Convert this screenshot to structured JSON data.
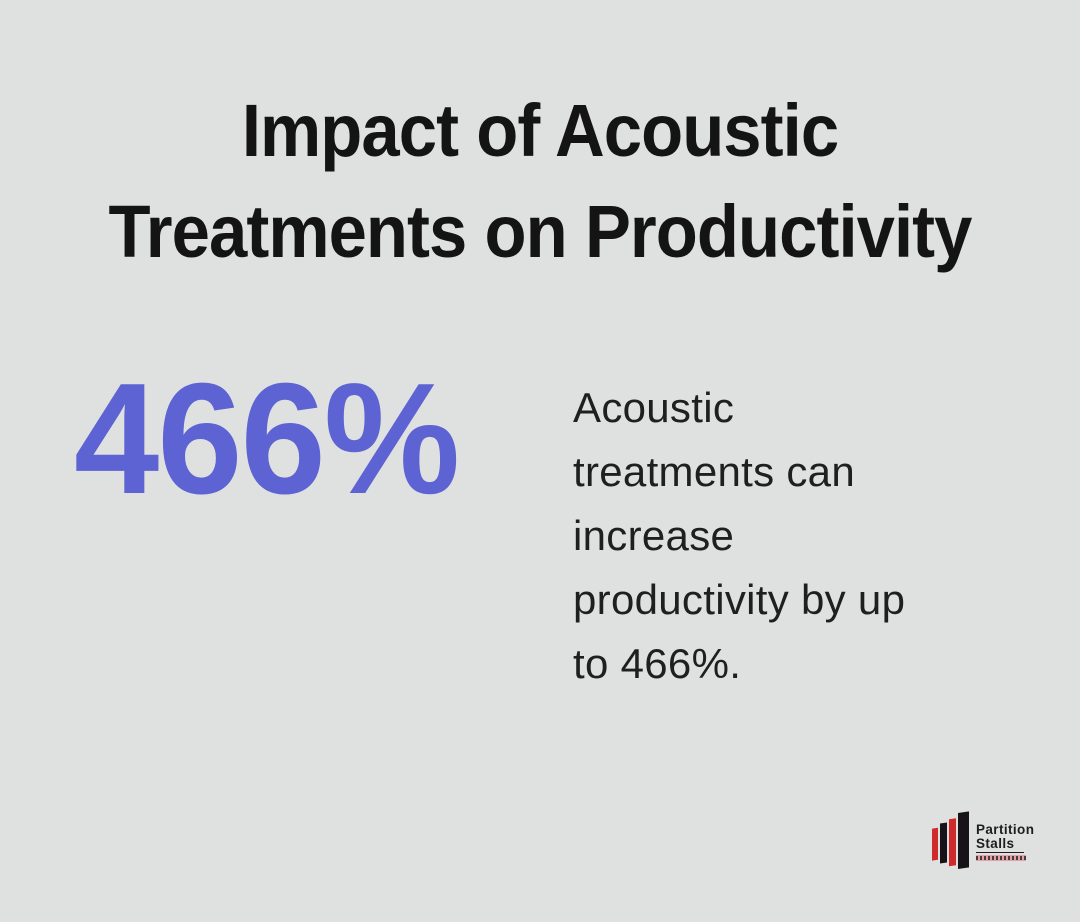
{
  "page": {
    "background_color": "#dfe1e0"
  },
  "title": {
    "line1": "Impact of Acoustic",
    "line2": "Treatments on Productivity",
    "color": "#141414"
  },
  "stat": {
    "value": "466%",
    "color": "#5d63d2",
    "description_full": "Acoustic treatments can increase productivity by up to 466%.",
    "description_lines": [
      "Acoustic",
      "treatments can",
      "increase",
      "productivity by up",
      "to 466%."
    ]
  },
  "logo": {
    "wordmark_line1": "Partition",
    "wordmark_line2": "Stalls",
    "icon": "partition-panel-bars-icon",
    "bar_colors": {
      "red": "#cf2b2d",
      "black": "#171317"
    },
    "tagline_bar_color": "#e2a1a6"
  }
}
